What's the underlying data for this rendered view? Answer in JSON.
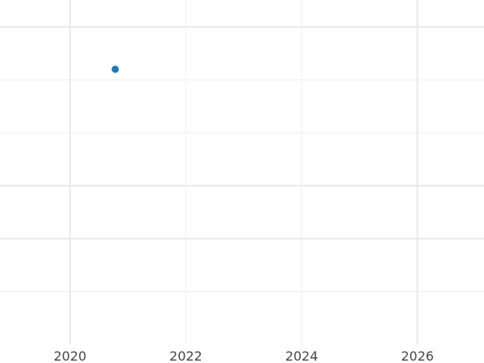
{
  "chart_data": {
    "type": "scatter",
    "title": "",
    "xlabel": "",
    "ylabel": "",
    "xlim": [
      2018.79,
      2027.15
    ],
    "ylim": [
      0,
      6.5
    ],
    "x_ticks": [
      2020,
      2022,
      2024,
      2026
    ],
    "x_tick_labels": [
      "2020",
      "2022",
      "2024",
      "2026"
    ],
    "y_gridlines": [
      1,
      2,
      3,
      4,
      5,
      6
    ],
    "grid": true,
    "series": [
      {
        "color": "#1f77b4",
        "points": [
          {
            "x": 2020.78,
            "y": 5.2
          }
        ]
      }
    ]
  }
}
